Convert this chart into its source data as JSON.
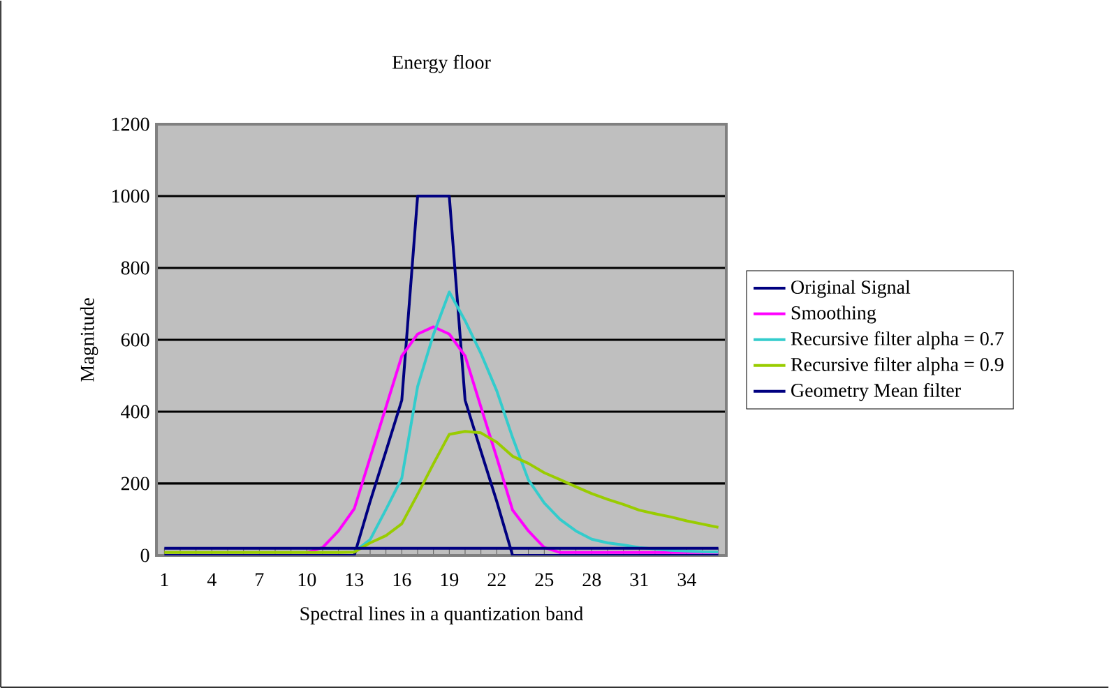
{
  "chart_data": {
    "type": "line",
    "title": "Energy floor",
    "xlabel": "Spectral lines in a quantization band",
    "ylabel": "Magnitude",
    "categories": [
      "1",
      null,
      null,
      "4",
      null,
      null,
      "7",
      null,
      null,
      "10",
      null,
      null,
      "13",
      null,
      null,
      "16",
      null,
      null,
      "19",
      null,
      null,
      "22",
      null,
      null,
      "25",
      null,
      null,
      "28",
      null,
      null,
      "31",
      null,
      null,
      "34",
      null,
      null
    ],
    "ylim": [
      0,
      1200
    ],
    "yticks": [
      0,
      200,
      400,
      600,
      800,
      1000,
      1200
    ],
    "grid": "y",
    "legend": "right",
    "marker": "none",
    "line_style": "solid",
    "series": [
      {
        "name": "Original Signal",
        "color": "#000080",
        "values": [
          0,
          0,
          0,
          0,
          0,
          0,
          0,
          0,
          0,
          0,
          0,
          0,
          0,
          150,
          290,
          432,
          1000,
          1000,
          1000,
          432,
          290,
          150,
          0,
          0,
          0,
          0,
          0,
          0,
          0,
          0,
          0,
          0,
          0,
          0,
          0,
          0
        ]
      },
      {
        "name": "Smoothing",
        "color": "#ff00ff",
        "values": [
          null,
          null,
          null,
          null,
          null,
          null,
          null,
          null,
          null,
          8,
          22,
          68,
          130,
          272,
          413,
          555,
          616,
          636,
          616,
          555,
          413,
          272,
          126,
          68,
          22,
          8,
          8,
          8,
          8,
          8,
          8,
          8,
          8,
          8,
          8,
          8
        ]
      },
      {
        "name": "Recursive filter alpha = 0.7",
        "color": "#33cccc",
        "values": [
          null,
          null,
          null,
          null,
          null,
          null,
          null,
          null,
          null,
          null,
          null,
          null,
          10,
          44,
          128,
          215,
          470,
          615,
          733,
          653,
          562,
          458,
          328,
          210,
          146,
          100,
          68,
          45,
          35,
          29,
          22,
          18,
          14,
          12,
          10,
          9
        ]
      },
      {
        "name": "Recursive filter alpha = 0.9",
        "color": "#99cc00",
        "values": [
          8,
          8,
          8,
          8,
          8,
          8,
          8,
          8,
          8,
          8,
          8,
          8,
          9,
          35,
          55,
          88,
          170,
          255,
          337,
          345,
          341,
          315,
          276,
          256,
          230,
          211,
          191,
          172,
          156,
          142,
          126,
          116,
          107,
          96,
          87,
          78
        ]
      },
      {
        "name": "Geometry Mean filter",
        "color": "#000080",
        "values": [
          20,
          20,
          20,
          20,
          20,
          20,
          20,
          20,
          20,
          20,
          20,
          20,
          20,
          20,
          20,
          20,
          20,
          20,
          20,
          20,
          20,
          20,
          20,
          20,
          20,
          20,
          20,
          20,
          20,
          20,
          20,
          20,
          20,
          20,
          20,
          20
        ]
      }
    ]
  }
}
